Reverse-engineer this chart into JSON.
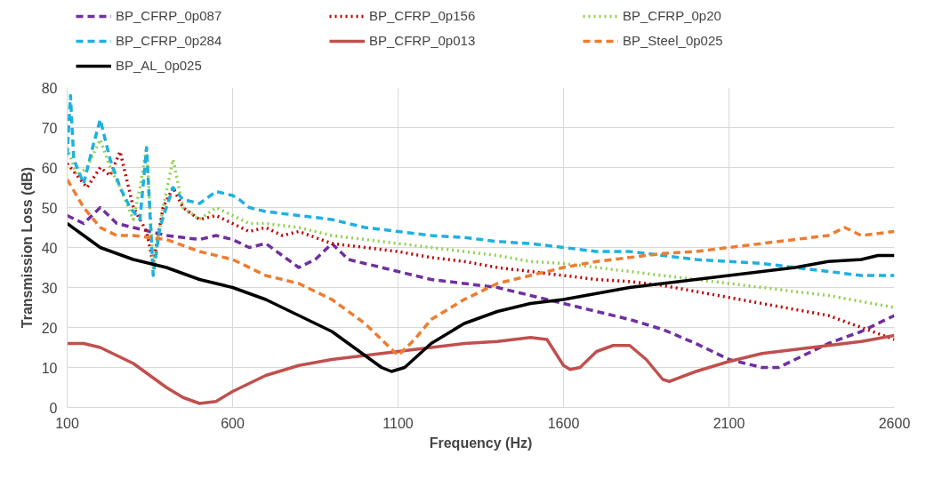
{
  "chart_data": {
    "type": "line",
    "xlabel": "Frequency (Hz)",
    "ylabel": "Transmission Loss (dB)",
    "xlim": [
      100,
      2600
    ],
    "xticks": [
      100,
      600,
      1100,
      1600,
      2100,
      2600
    ],
    "ylim": [
      0,
      80
    ],
    "yticks": [
      0,
      10,
      20,
      30,
      40,
      50,
      60,
      70,
      80
    ],
    "grid": true,
    "legend": "top",
    "marker": "none",
    "series": [
      {
        "name": "BP_CFRP_0p087",
        "color": "#7030a0",
        "line_style": "dashed",
        "x": [
          100,
          150,
          200,
          250,
          300,
          400,
          500,
          550,
          600,
          650,
          700,
          750,
          800,
          850,
          900,
          950,
          1000,
          1100,
          1200,
          1300,
          1400,
          1500,
          1600,
          1700,
          1800,
          1900,
          2000,
          2100,
          2200,
          2250,
          2300,
          2400,
          2500,
          2600
        ],
        "values": [
          48,
          46,
          50,
          46,
          45,
          43,
          42,
          43,
          42,
          40,
          41,
          38,
          35,
          37,
          41,
          37,
          36,
          34,
          32,
          31,
          30,
          28,
          26,
          24,
          22,
          19.5,
          16,
          12,
          10,
          10,
          12,
          16,
          19,
          23
        ]
      },
      {
        "name": "BP_CFRP_0p156",
        "color": "#c00000",
        "line_style": "dotted",
        "x": [
          100,
          130,
          160,
          200,
          230,
          260,
          300,
          340,
          360,
          390,
          420,
          450,
          500,
          550,
          600,
          650,
          700,
          750,
          800,
          900,
          1000,
          1100,
          1200,
          1300,
          1400,
          1500,
          1600,
          1700,
          1800,
          1900,
          2000,
          2100,
          2200,
          2300,
          2400,
          2500,
          2600
        ],
        "values": [
          61,
          58,
          55,
          60,
          58,
          64,
          50,
          44,
          36,
          50,
          55,
          50,
          47,
          48,
          46,
          44,
          45,
          43,
          44,
          41,
          40,
          39,
          37.5,
          36.5,
          35,
          34,
          33,
          32,
          31.5,
          30.5,
          29,
          27.5,
          26,
          24.5,
          23,
          20,
          17
        ]
      },
      {
        "name": "BP_CFRP_0p20",
        "color": "#92d050",
        "line_style": "dotted",
        "x": [
          100,
          130,
          160,
          200,
          230,
          260,
          300,
          320,
          340,
          360,
          390,
          420,
          450,
          500,
          550,
          600,
          650,
          700,
          800,
          900,
          1000,
          1100,
          1200,
          1300,
          1400,
          1500,
          1600,
          1700,
          1800,
          1900,
          2000,
          2100,
          2200,
          2300,
          2400,
          2500,
          2600
        ],
        "values": [
          65,
          58,
          60,
          67,
          60,
          55,
          47,
          55,
          65,
          35,
          50,
          62,
          50,
          47,
          50,
          48,
          46,
          46,
          45,
          43,
          42,
          41,
          40,
          39,
          38,
          36.5,
          36,
          35,
          34,
          33,
          32,
          31,
          30,
          29,
          28,
          26.5,
          25
        ]
      },
      {
        "name": "BP_CFRP_0p284",
        "color": "#1fb0e0",
        "line_style": "dashed",
        "x": [
          100,
          110,
          120,
          150,
          180,
          200,
          230,
          260,
          290,
          320,
          340,
          360,
          380,
          420,
          450,
          500,
          550,
          600,
          620,
          650,
          700,
          800,
          900,
          1000,
          1100,
          1200,
          1300,
          1400,
          1500,
          1600,
          1700,
          1800,
          1900,
          2000,
          2100,
          2200,
          2300,
          2400,
          2500,
          2600
        ],
        "values": [
          63,
          78,
          62,
          56,
          66,
          72,
          62,
          55,
          50,
          47,
          65,
          33,
          45,
          55,
          52,
          51,
          54,
          53,
          52,
          50,
          49,
          48,
          47,
          45,
          44,
          43,
          42.5,
          41.5,
          41,
          40,
          39,
          39,
          38,
          37,
          36.5,
          36,
          35,
          34,
          33,
          33
        ]
      },
      {
        "name": "BP_CFRP_0p013",
        "color": "#c0504d",
        "line_style": "solid",
        "x": [
          100,
          150,
          200,
          300,
          400,
          450,
          500,
          550,
          600,
          700,
          800,
          900,
          1000,
          1100,
          1200,
          1300,
          1400,
          1500,
          1550,
          1600,
          1620,
          1650,
          1700,
          1750,
          1800,
          1850,
          1900,
          1920,
          2000,
          2100,
          2200,
          2300,
          2400,
          2500,
          2600
        ],
        "values": [
          16,
          16,
          15,
          11,
          5,
          2.5,
          1,
          1.5,
          4,
          8,
          10.5,
          12,
          13,
          14,
          15,
          16,
          16.5,
          17.5,
          17,
          10.5,
          9.5,
          10,
          14,
          15.5,
          15.5,
          12,
          7,
          6.5,
          9,
          11.5,
          13.5,
          14.5,
          15.5,
          16.5,
          18
        ]
      },
      {
        "name": "BP_Steel_0p025",
        "color": "#ed7d31",
        "line_style": "dashed",
        "x": [
          100,
          150,
          200,
          250,
          300,
          400,
          500,
          600,
          700,
          800,
          900,
          1000,
          1050,
          1100,
          1150,
          1200,
          1300,
          1400,
          1500,
          1600,
          1700,
          1800,
          1900,
          2000,
          2100,
          2200,
          2300,
          2400,
          2450,
          2500,
          2600
        ],
        "values": [
          57,
          50,
          45,
          43,
          43,
          42,
          39,
          37,
          33,
          31,
          27,
          21,
          17,
          13,
          17,
          22,
          27,
          31,
          33,
          35,
          36.5,
          37.5,
          38.5,
          39,
          40,
          41,
          42,
          43,
          45,
          43,
          44
        ]
      },
      {
        "name": "BP_AL_0p025",
        "color": "#000000",
        "line_style": "solid",
        "x": [
          100,
          150,
          200,
          300,
          400,
          500,
          600,
          700,
          800,
          900,
          1000,
          1050,
          1080,
          1120,
          1200,
          1300,
          1400,
          1500,
          1600,
          1700,
          1800,
          1900,
          2000,
          2100,
          2200,
          2300,
          2400,
          2500,
          2550,
          2600
        ],
        "values": [
          46,
          43,
          40,
          37,
          35,
          32,
          30,
          27,
          23,
          19,
          13,
          10,
          9,
          10,
          16,
          21,
          24,
          26,
          27,
          28.5,
          30,
          31,
          32,
          33,
          34,
          35,
          36.5,
          37,
          38,
          38
        ]
      }
    ]
  }
}
